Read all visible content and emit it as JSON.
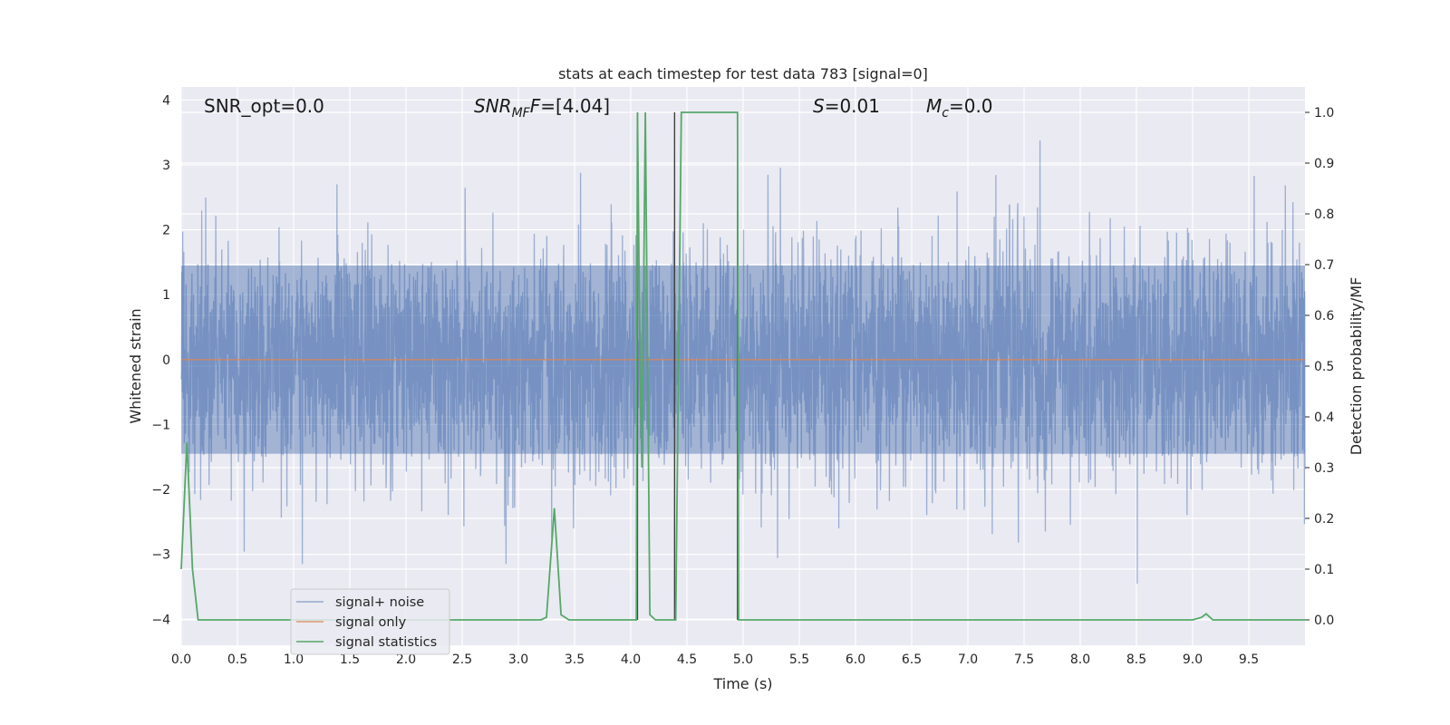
{
  "chart_data": {
    "type": "line",
    "title": "stats at each timestep for test data 783 [signal=0]",
    "xlabel": "Time (s)",
    "ylabel": "Whitened strain",
    "y2label": "Detection probability/MF",
    "xlim": [
      0.0,
      10.0
    ],
    "ylim": [
      -4.4,
      4.2
    ],
    "y2lim": [
      -0.05,
      1.05
    ],
    "x_ticks": [
      "0.0",
      "0.5",
      "1.0",
      "1.5",
      "2.0",
      "2.5",
      "3.0",
      "3.5",
      "4.0",
      "4.5",
      "5.0",
      "5.5",
      "6.0",
      "6.5",
      "7.0",
      "7.5",
      "8.0",
      "8.5",
      "9.0",
      "9.5"
    ],
    "y_ticks": [
      "4",
      "3",
      "2",
      "1",
      "0",
      "−1",
      "−2",
      "−3",
      "−4"
    ],
    "y2_ticks": [
      "1.0",
      "0.9",
      "0.8",
      "0.7",
      "0.6",
      "0.5",
      "0.4",
      "0.3",
      "0.2",
      "0.1",
      "0.0"
    ],
    "grid": true,
    "legend_position": "lower-left",
    "series": [
      {
        "name": "signal+ noise",
        "color": "#4c72b0",
        "axis": "left",
        "kind": "noise",
        "amplitude_envelope": 1.5,
        "peak_range": [
          -4.0,
          3.8
        ]
      },
      {
        "name": "signal only",
        "color": "#dd8452",
        "axis": "left",
        "x": [
          0.0,
          10.0
        ],
        "y": [
          0.0,
          0.0
        ]
      },
      {
        "name": "signal statistics",
        "color": "#55a868",
        "axis": "right",
        "x": [
          0.0,
          0.05,
          0.1,
          0.15,
          0.2,
          0.25,
          3.2,
          3.25,
          3.32,
          3.38,
          3.45,
          4.05,
          4.06,
          4.08,
          4.1,
          4.13,
          4.17,
          4.22,
          4.38,
          4.4,
          4.45,
          4.95,
          4.96,
          5.05,
          5.1,
          9.0,
          9.08,
          9.12,
          9.18,
          10.0
        ],
        "y": [
          0.1,
          0.35,
          0.1,
          0.0,
          0.0,
          0.0,
          0.0,
          0.005,
          0.22,
          0.01,
          0.0,
          0.0,
          1.0,
          0.55,
          0.3,
          1.0,
          0.01,
          0.0,
          0.0,
          0.0,
          1.0,
          1.0,
          0.0,
          0.0,
          0.0,
          0.0,
          0.005,
          0.012,
          0.0,
          0.0
        ]
      },
      {
        "name": "",
        "color": "#404040",
        "axis": "right",
        "kind": "vlines",
        "x": [
          4.06,
          4.39,
          4.95
        ],
        "y": [
          1.0,
          1.0,
          1.0
        ]
      }
    ],
    "annotations": [
      {
        "text": "SNR_opt=0.0"
      },
      {
        "text_main": "SNR",
        "text_sub": "MF",
        "text_italic_tail": "F",
        "text_tail": "=[4.04]"
      },
      {
        "text_main": "S",
        "text_tail": "=0.01"
      },
      {
        "text_main": "M",
        "text_sub": "c",
        "text_tail": "=0.0"
      }
    ]
  }
}
